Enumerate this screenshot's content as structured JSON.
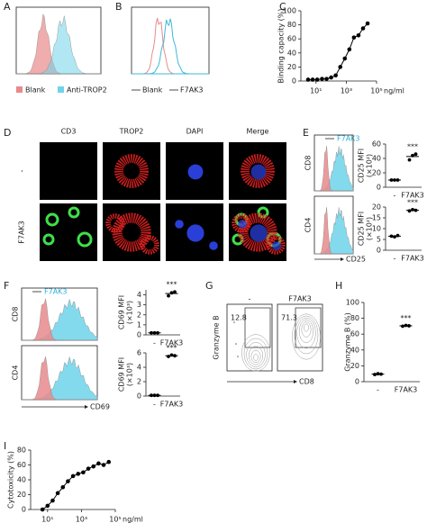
{
  "panels": {
    "A": {
      "label": "A",
      "legend": [
        "Blank",
        "Anti-TROP2"
      ]
    },
    "B": {
      "label": "B",
      "legend": [
        "Blank",
        "F7AK3"
      ]
    },
    "C": {
      "label": "C",
      "plot": {
        "type": "line",
        "ylabel": "Binding capacity (%)",
        "xunit": "ng/ml",
        "xscale": "log",
        "x": [
          3,
          6,
          12,
          25,
          50,
          100,
          200,
          400,
          800,
          1600,
          3200,
          6400,
          12800,
          25600
        ],
        "values": [
          2,
          2,
          2,
          3,
          3,
          5,
          8,
          20,
          32,
          45,
          62,
          65,
          75,
          82
        ],
        "xlim": [
          1,
          100000
        ],
        "xticks": [
          {
            "value": 10,
            "label": "10¹"
          },
          {
            "value": 1000,
            "label": "10³"
          },
          {
            "value": 100000,
            "label": "10⁵"
          }
        ],
        "ylim": [
          0,
          100
        ],
        "yticks": [
          0,
          20,
          40,
          60,
          80,
          100
        ],
        "color": "#000000"
      }
    },
    "D": {
      "label": "D",
      "columns": [
        "CD3",
        "TROP2",
        "DAPI",
        "Merge"
      ],
      "rows": [
        "-",
        "F7AK3"
      ]
    },
    "E": {
      "label": "E",
      "legend": "F7AK3",
      "histograms": [
        "CD8",
        "CD4"
      ],
      "xlabel": "CD25",
      "top": {
        "type": "dot",
        "ylabel": [
          "CD25 MFI",
          "(×10²)"
        ],
        "categories": [
          "-",
          "F7AK3"
        ],
        "groups": [
          [
            10,
            10,
            10
          ],
          [
            38,
            44,
            46
          ]
        ],
        "significance": "***",
        "ylim": [
          0,
          60
        ],
        "yticks": [
          0,
          20,
          40,
          60
        ]
      },
      "bottom": {
        "type": "dot",
        "ylabel": [
          "CD25 MFI",
          "(×10²)"
        ],
        "categories": [
          "-",
          "F7AK3"
        ],
        "groups": [
          [
            6.5,
            6.2,
            6.8
          ],
          [
            18.2,
            18.8,
            18.5
          ]
        ],
        "significance": "***",
        "ylim": [
          0,
          20
        ],
        "yticks": [
          0,
          5,
          10,
          15,
          20
        ]
      }
    },
    "F": {
      "label": "F",
      "legend": "F7AK3",
      "histograms": [
        "CD8",
        "CD4"
      ],
      "xlabel": "CD69",
      "top": {
        "type": "dot",
        "ylabel": [
          "CD69 MFI",
          "(×10³)"
        ],
        "categories": [
          "-",
          "F7AK3"
        ],
        "groups": [
          [
            0.2,
            0.2,
            0.2
          ],
          [
            3.9,
            4.2,
            4.3
          ]
        ],
        "significance": "***",
        "ylim": [
          0,
          4.5
        ],
        "yticks": [
          0,
          1,
          2,
          3,
          4
        ]
      },
      "bottom": {
        "type": "dot",
        "ylabel": [
          "CD69 MFI",
          "(×10³)"
        ],
        "categories": [
          "-",
          "F7AK3"
        ],
        "groups": [
          [
            0.1,
            0.1,
            0.1
          ],
          [
            5.5,
            5.7,
            5.6
          ]
        ],
        "significance": "***",
        "ylim": [
          0,
          6
        ],
        "yticks": [
          0,
          2,
          4,
          6
        ]
      }
    },
    "G": {
      "label": "G",
      "ylabel": "Granzyme B",
      "xlabel": "CD8",
      "gates": [
        {
          "title": "-",
          "value": 12.8
        },
        {
          "title": "F7AK3",
          "value": 71.3
        }
      ]
    },
    "H": {
      "label": "H",
      "plot": {
        "type": "dot",
        "ylabel": [
          "Granzyme B (%)"
        ],
        "categories": [
          "-",
          "F7AK3"
        ],
        "groups": [
          [
            9,
            10,
            9.5
          ],
          [
            70,
            71,
            70.5
          ]
        ],
        "significance": "***",
        "ylim": [
          0,
          100
        ],
        "yticks": [
          0,
          20,
          40,
          60,
          80,
          100
        ]
      }
    },
    "I": {
      "label": "I",
      "plot": {
        "type": "line",
        "ylabel": "Cytotoxicity (%)",
        "xunit": "ng/ml",
        "xscale": "log",
        "x": [
          5,
          10,
          20,
          40,
          80,
          160,
          320,
          640,
          1280,
          2560,
          5120,
          10240,
          20480,
          40960
        ],
        "values": [
          0,
          5,
          12,
          22,
          30,
          38,
          45,
          48,
          50,
          55,
          58,
          62,
          60,
          64
        ],
        "xlim": [
          1,
          100000
        ],
        "xticks": [
          {
            "value": 10,
            "label": "10¹"
          },
          {
            "value": 1000,
            "label": "10³"
          },
          {
            "value": 100000,
            "label": "10⁵"
          }
        ],
        "ylim": [
          0,
          80
        ],
        "yticks": [
          0,
          20,
          40,
          60,
          80
        ],
        "color": "#000000"
      }
    }
  }
}
